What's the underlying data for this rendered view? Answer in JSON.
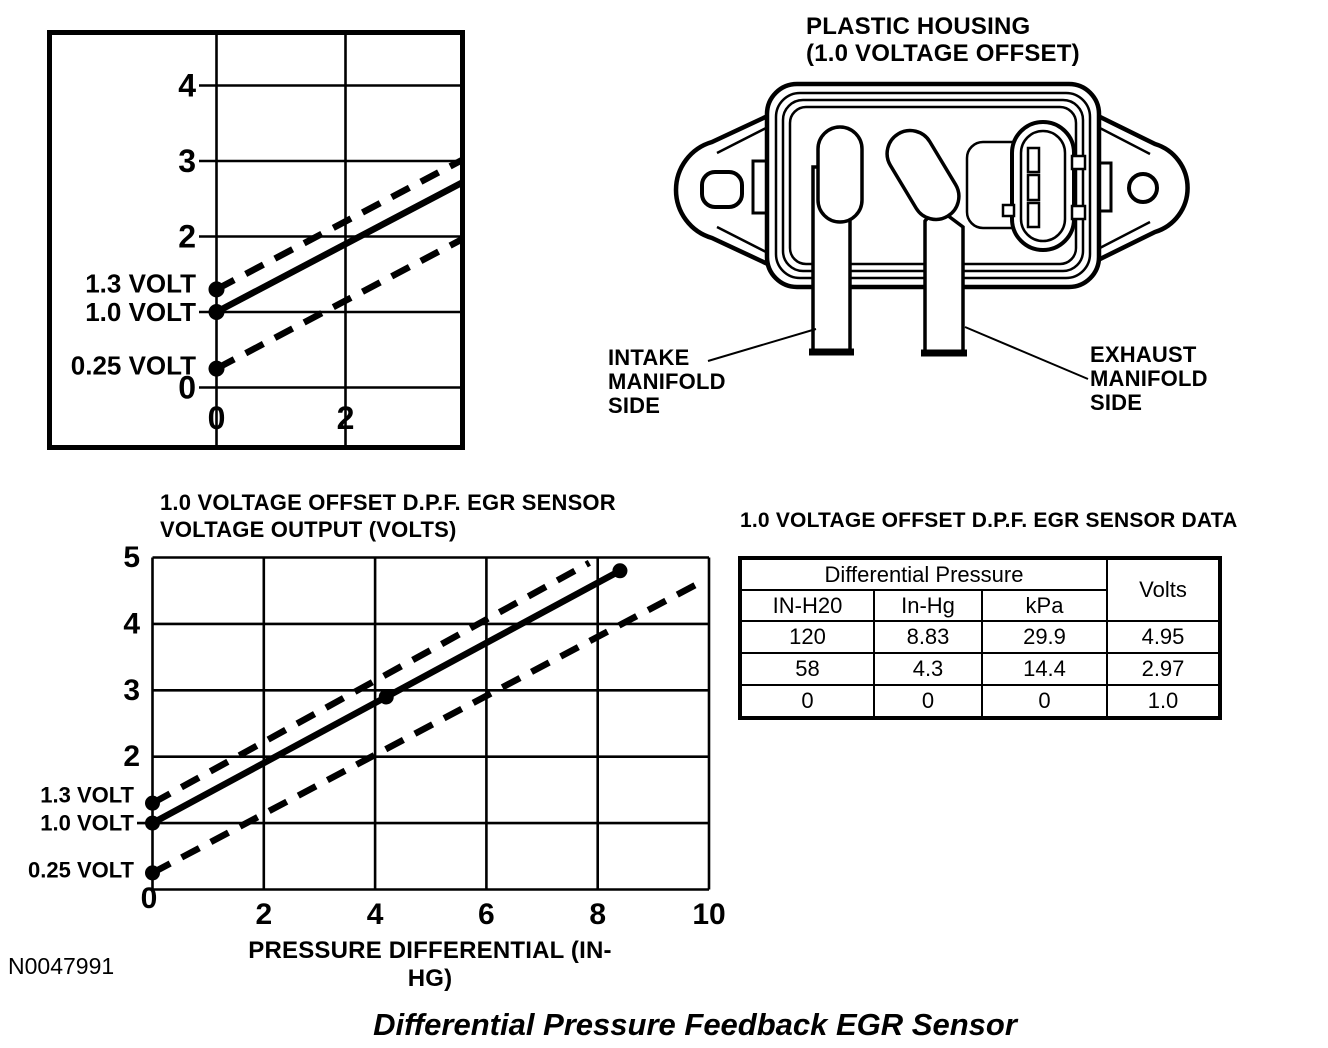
{
  "page": {
    "figure_number": "N0047991",
    "caption": "Differential Pressure Feedback EGR Sensor",
    "background": "#ffffff",
    "ink": "#000000"
  },
  "housing_diagram": {
    "title_line1": "PLASTIC HOUSING",
    "title_line2": "(1.0 VOLTAGE OFFSET)",
    "intake_label": {
      "line1": "INTAKE",
      "line2": "MANIFOLD",
      "line3": "SIDE"
    },
    "exhaust_label": {
      "line1": "EXHAUST",
      "line2": "MANIFOLD",
      "line3": "SIDE"
    }
  },
  "chart_data": [
    {
      "id": "voltage-offset-detail",
      "type": "line",
      "title": "",
      "xlabel": "",
      "ylabel": "",
      "xlim": [
        -2.6,
        3.8
      ],
      "ylim": [
        -0.78,
        4.68
      ],
      "grid": true,
      "border": true,
      "xticks": [
        {
          "v": 0,
          "label": "0"
        },
        {
          "v": 2,
          "label": "2"
        }
      ],
      "yticks": [
        {
          "v": 4,
          "label": "4"
        },
        {
          "v": 3,
          "label": "3"
        },
        {
          "v": 2,
          "label": "2"
        },
        {
          "v": 0,
          "label": "0"
        }
      ],
      "grid_x": [
        0,
        2
      ],
      "grid_y": [
        0,
        1,
        2,
        3,
        4
      ],
      "series": [
        {
          "name": "nominal-output",
          "style": "solid",
          "points": [
            [
              0,
              1.0
            ],
            [
              3.8,
              2.71
            ]
          ],
          "markers": [
            [
              0,
              1.0
            ]
          ]
        },
        {
          "name": "upper-tolerance",
          "style": "dashed",
          "points": [
            [
              0,
              1.3
            ],
            [
              3.8,
              3.01
            ]
          ],
          "markers": [
            [
              0,
              1.3
            ]
          ]
        },
        {
          "name": "lower-tolerance",
          "style": "dashed",
          "points": [
            [
              0,
              0.25
            ],
            [
              3.8,
              1.96
            ]
          ],
          "markers": [
            [
              0,
              0.25
            ]
          ]
        }
      ],
      "annotations": [
        {
          "label": "1.3 VOLT",
          "v": 1.3
        },
        {
          "label": "1.0 VOLT",
          "v": 1.0
        },
        {
          "label": "0.25 VOLT",
          "v": 0.25
        }
      ]
    },
    {
      "id": "voltage-output",
      "type": "line",
      "title_lines": [
        "1.0 VOLTAGE OFFSET D.P.F. EGR SENSOR",
        "VOLTAGE OUTPUT (VOLTS)"
      ],
      "xlabel": "PRESSURE DIFFERENTIAL (IN-HG)",
      "ylabel": "",
      "xlim": [
        0,
        10
      ],
      "ylim": [
        0,
        5
      ],
      "grid": true,
      "border": false,
      "xticks": [
        {
          "v": 0,
          "label": "0"
        },
        {
          "v": 2,
          "label": "2"
        },
        {
          "v": 4,
          "label": "4"
        },
        {
          "v": 6,
          "label": "6"
        },
        {
          "v": 8,
          "label": "8"
        },
        {
          "v": 10,
          "label": "10"
        }
      ],
      "yticks": [
        {
          "v": 5,
          "label": "5"
        },
        {
          "v": 4,
          "label": "4"
        },
        {
          "v": 3,
          "label": "3"
        },
        {
          "v": 2,
          "label": "2"
        }
      ],
      "grid_x": [
        0,
        2,
        4,
        6,
        8,
        10
      ],
      "grid_y": [
        0,
        1,
        2,
        3,
        4,
        5
      ],
      "series": [
        {
          "name": "nominal-output",
          "style": "solid",
          "points": [
            [
              0,
              1.0
            ],
            [
              8.4,
              4.8
            ]
          ],
          "markers": [
            [
              0,
              1.0
            ],
            [
              4.2,
              2.9
            ],
            [
              8.4,
              4.8
            ]
          ]
        },
        {
          "name": "upper-tolerance",
          "style": "dashed",
          "points": [
            [
              0,
              1.3
            ],
            [
              7.85,
              4.92
            ]
          ],
          "markers": [
            [
              0,
              1.3
            ]
          ]
        },
        {
          "name": "lower-tolerance",
          "style": "dashed",
          "points": [
            [
              0,
              0.25
            ],
            [
              9.9,
              4.65
            ]
          ],
          "markers": [
            [
              0,
              0.25
            ]
          ]
        }
      ],
      "annotations": [
        {
          "label": "1.3 VOLT",
          "v": 1.3
        },
        {
          "label": "1.0 VOLT",
          "v": 1.0
        },
        {
          "label": "0.25 VOLT",
          "v": 0.25
        }
      ]
    }
  ],
  "table": {
    "title": "1.0 VOLTAGE OFFSET D.P.F. EGR SENSOR DATA",
    "group_header": "Differential Pressure",
    "volts_header": "Volts",
    "sub_headers": [
      "IN-H20",
      "In-Hg",
      "kPa"
    ],
    "rows": [
      [
        "120",
        "8.83",
        "29.9",
        "4.95"
      ],
      [
        "58",
        "4.3",
        "14.4",
        "2.97"
      ],
      [
        "0",
        "0",
        "0",
        "1.0"
      ]
    ]
  }
}
